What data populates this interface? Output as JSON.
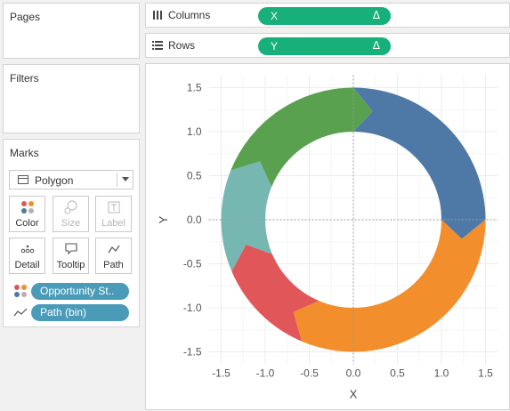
{
  "cards": {
    "pages": "Pages",
    "filters": "Filters",
    "marks": "Marks"
  },
  "shelves": {
    "columns": {
      "label": "Columns",
      "icon": "columns-icon",
      "pill": "X",
      "pill_symbol": "Δ"
    },
    "rows": {
      "label": "Rows",
      "icon": "rows-icon",
      "pill": "Y",
      "pill_symbol": "Δ"
    }
  },
  "marks": {
    "mark_type": "Polygon",
    "buttons": [
      {
        "label": "Color",
        "icon": "color-dots-icon",
        "enabled": true
      },
      {
        "label": "Size",
        "icon": "size-icon",
        "enabled": false
      },
      {
        "label": "Label",
        "icon": "label-icon",
        "enabled": false
      },
      {
        "label": "Detail",
        "icon": "detail-dots-icon",
        "enabled": true
      },
      {
        "label": "Tooltip",
        "icon": "tooltip-icon",
        "enabled": true
      },
      {
        "label": "Path",
        "icon": "path-icon",
        "enabled": true
      }
    ],
    "fields": [
      {
        "label": "Opportunity St..",
        "icon": "color-dots-icon"
      },
      {
        "label": "Path (bin)",
        "icon": "path-icon"
      }
    ]
  },
  "colors": {
    "pill_green": "#18b07a",
    "pill_blue": "#4a9bb8"
  },
  "chart_data": {
    "type": "area",
    "xlabel": "X",
    "ylabel": "Y",
    "xlim": [
      -1.5,
      1.5
    ],
    "ylim": [
      -1.5,
      1.5
    ],
    "xticks": [
      "-1.5",
      "-1.0",
      "-0.5",
      "0.0",
      "0.5",
      "1.0",
      "1.5"
    ],
    "yticks": [
      "1.5",
      "1.0",
      "0.5",
      "0.0",
      "-0.5",
      "-1.0",
      "-1.5"
    ],
    "grid": true,
    "ring": {
      "outer_radius": 1.5,
      "inner_radius": 1.0
    },
    "segments": [
      {
        "start_angle": 90,
        "end_angle": 0,
        "arrow_angle": -10,
        "color": "#4e79a7"
      },
      {
        "start_angle": 0,
        "end_angle": -113,
        "arrow_angle": -123,
        "color": "#f28e2b"
      },
      {
        "start_angle": -113,
        "end_angle": -157,
        "arrow_angle": -167,
        "color": "#e15759"
      },
      {
        "start_angle": -157,
        "end_angle": -202,
        "arrow_angle": -212,
        "color": "#76b7b2"
      },
      {
        "start_angle": -202,
        "end_angle": -270,
        "arrow_angle": -280,
        "color": "#59a14f"
      }
    ]
  }
}
